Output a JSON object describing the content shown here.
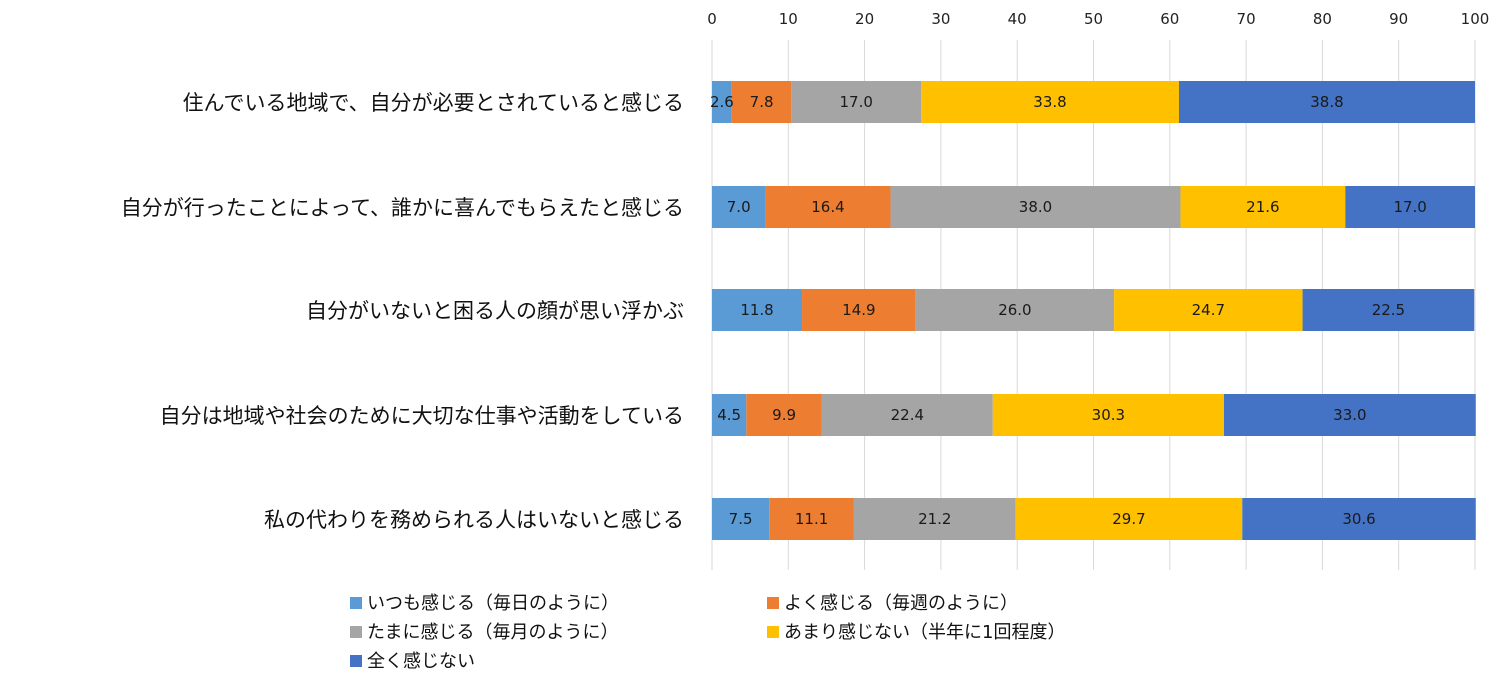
{
  "chart_data": {
    "type": "bar",
    "orientation": "horizontal",
    "stacked": true,
    "categories": [
      "住んでいる地域で、自分が必要とされていると感じる",
      "自分が行ったことによって、誰かに喜んでもらえたと感じる",
      "自分がいないと困る人の顔が思い浮かぶ",
      "自分は地域や社会のために大切な仕事や活動をしている",
      "私の代わりを務められる人はいないと感じる"
    ],
    "series": [
      {
        "name": "いつも感じる（毎日のように）",
        "color": "#5B9BD5",
        "values": [
          2.6,
          7.0,
          11.8,
          4.5,
          7.5
        ]
      },
      {
        "name": "よく感じる（毎週のように）",
        "color": "#ED7D31",
        "values": [
          7.8,
          16.4,
          14.9,
          9.9,
          11.1
        ]
      },
      {
        "name": "たまに感じる（毎月のように）",
        "color": "#A5A5A5",
        "values": [
          17.0,
          38.0,
          26.0,
          22.4,
          21.2
        ]
      },
      {
        "name": "あまり感じない（半年に1回程度）",
        "color": "#FFC000",
        "values": [
          33.8,
          21.6,
          24.7,
          30.3,
          29.7
        ]
      },
      {
        "name": "全く感じない",
        "color": "#4472C4",
        "values": [
          38.8,
          17.0,
          22.5,
          33.0,
          30.6
        ]
      }
    ],
    "xlim": [
      0,
      100
    ],
    "xticks": [
      0,
      10,
      20,
      30,
      40,
      50,
      60,
      70,
      80,
      90,
      100
    ],
    "title": "",
    "xlabel": "",
    "ylabel": "",
    "grid": "vertical",
    "axis_position": "top",
    "legend_position": "bottom",
    "data_label_format": "one-decimal"
  }
}
